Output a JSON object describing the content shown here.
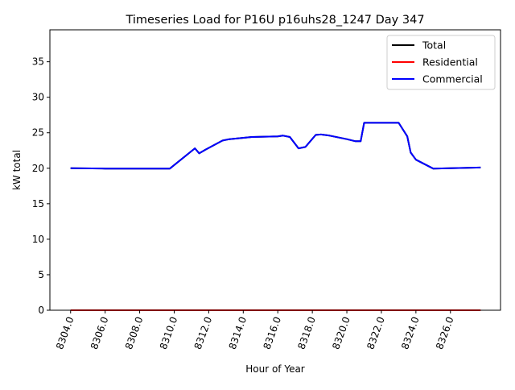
{
  "chart_data": {
    "type": "line",
    "title": "Timeseries Load for P16U p16uhs28_1247  Day 347",
    "xlabel": "Hour of Year",
    "ylabel": "kW total",
    "xlim": [
      8302.8,
      8328.9
    ],
    "ylim": [
      0,
      39.5
    ],
    "xticks": [
      8304,
      8306,
      8308,
      8310,
      8312,
      8314,
      8316,
      8318,
      8320,
      8322,
      8324,
      8326
    ],
    "xtick_labels": [
      "8304.0",
      "8306.0",
      "8308.0",
      "8310.0",
      "8312.0",
      "8314.0",
      "8316.0",
      "8318.0",
      "8320.0",
      "8322.0",
      "8324.0",
      "8326.0"
    ],
    "yticks": [
      0,
      5,
      10,
      15,
      20,
      25,
      30,
      35
    ],
    "ytick_labels": [
      "0",
      "5",
      "10",
      "15",
      "20",
      "25",
      "30",
      "35"
    ],
    "grid": false,
    "legend_position": "top-right",
    "x": [
      8304,
      8306,
      8308,
      8309.75,
      8311.2,
      8311.45,
      8311.8,
      8312.8,
      8313.2,
      8314.5,
      8316,
      8316.3,
      8316.7,
      8317.2,
      8317.6,
      8318.2,
      8318.5,
      8319,
      8320,
      8320.5,
      8320.8,
      8321,
      8323,
      8323.5,
      8323.7,
      8324,
      8325,
      8326,
      8327.75
    ],
    "series": [
      {
        "name": "Total",
        "color": "#000000",
        "values": [
          20.0,
          19.95,
          19.95,
          19.95,
          22.8,
          22.1,
          22.6,
          23.9,
          24.1,
          24.4,
          24.5,
          24.6,
          24.4,
          22.8,
          23.0,
          24.7,
          24.75,
          24.6,
          24.1,
          23.8,
          23.8,
          26.4,
          26.4,
          24.5,
          22.2,
          21.2,
          19.95,
          20.0,
          20.1
        ]
      },
      {
        "name": "Residential",
        "color": "#ff0000",
        "values": [
          0,
          0,
          0,
          0,
          0,
          0,
          0,
          0,
          0,
          0,
          0,
          0,
          0,
          0,
          0,
          0,
          0,
          0,
          0,
          0,
          0,
          0,
          0,
          0,
          0,
          0,
          0,
          0,
          0
        ]
      },
      {
        "name": "Commercial",
        "color": "#0000ff",
        "values": [
          20.0,
          19.95,
          19.95,
          19.95,
          22.8,
          22.1,
          22.6,
          23.9,
          24.1,
          24.4,
          24.5,
          24.6,
          24.4,
          22.8,
          23.0,
          24.7,
          24.75,
          24.6,
          24.1,
          23.8,
          23.8,
          26.4,
          26.4,
          24.5,
          22.2,
          21.2,
          19.95,
          20.0,
          20.1
        ]
      }
    ]
  }
}
